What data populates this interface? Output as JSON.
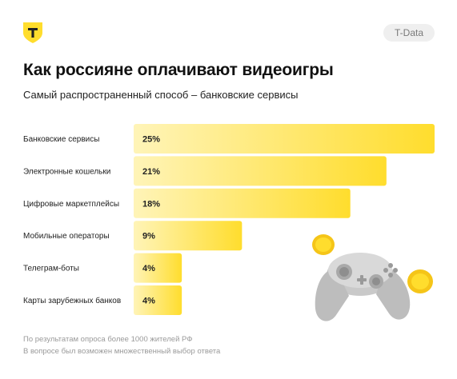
{
  "brand": {
    "logo_icon": "t-bank-shield-logo",
    "logo_letter": "T",
    "tag": "T-Data",
    "accent": "#FFDD2D"
  },
  "header": {
    "title": "Как россияне оплачивают видеоигры",
    "subtitle": "Самый распространенный способ – банковские сервисы"
  },
  "chart_data": {
    "type": "bar",
    "orientation": "horizontal",
    "categories": [
      "Банковские сервисы",
      "Электронные кошельки",
      "Цифровые маркетплейсы",
      "Мобильные операторы",
      "Телеграм-боты",
      "Карты зарубежных банков"
    ],
    "values": [
      25,
      21,
      18,
      9,
      4,
      4
    ],
    "value_labels": [
      "25%",
      "21%",
      "18%",
      "9%",
      "4%",
      "4%"
    ],
    "unit": "%",
    "xlim": [
      0,
      25
    ],
    "grid": false,
    "legend": "none",
    "bar_colors": {
      "start": "#FFF4B8",
      "end": "#FFDD2D"
    }
  },
  "illustration": {
    "icon": "gamepad-with-coins-icon"
  },
  "footnotes": [
    "По результатам опроса более 1000 жителей РФ",
    "В вопросе был возможен множественный выбор ответа"
  ]
}
